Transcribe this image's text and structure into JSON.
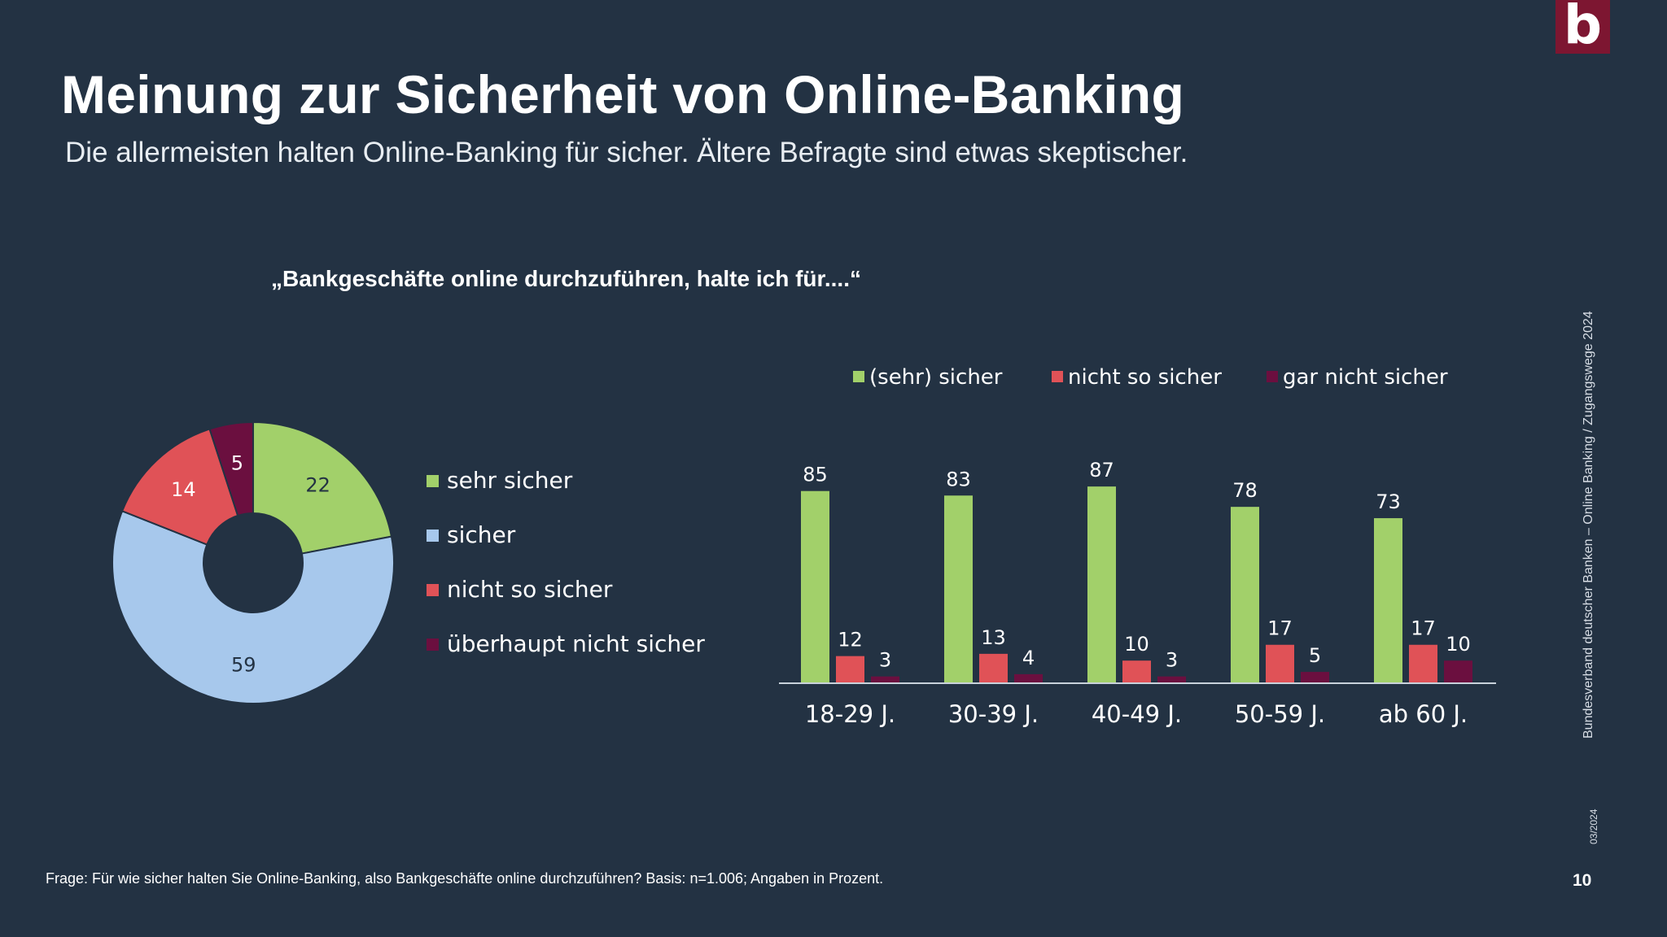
{
  "logo": "b",
  "title": "Meinung zur Sicherheit von Online-Banking",
  "subtitle": "Die allermeisten halten Online-Banking für sicher. Ältere Befragte sind etwas skeptischer.",
  "question": "„Bankgeschäfte online durchzuführen, halte ich für....“",
  "footnote": "Frage: Für wie sicher halten Sie Online-Banking, also Bankgeschäfte online durchzuführen? Basis: n=1.006; Angaben in Prozent.",
  "page_number": "10",
  "source_vertical": "Bundesverband deutscher Banken – Online Banking / Zugangswege  2024",
  "date_vertical": "03/2024",
  "chart_data": [
    {
      "type": "pie",
      "donut": true,
      "legend_position": "right",
      "categories": [
        "sehr sicher",
        "sicher",
        "nicht so sicher",
        "überhaupt nicht sicher"
      ],
      "values": [
        22,
        59,
        14,
        5
      ],
      "colors": [
        "#a2d06a",
        "#a7c8ec",
        "#e05257",
        "#6b0f3f"
      ],
      "label_colors": [
        "#233243",
        "#233243",
        "#ffffff",
        "#ffffff"
      ]
    },
    {
      "type": "bar",
      "legend_position": "top",
      "categories": [
        "18-29 J.",
        "30-39 J.",
        "40-49 J.",
        "50-59 J.",
        "ab 60 J."
      ],
      "series": [
        {
          "name": "(sehr) sicher",
          "values": [
            85,
            83,
            87,
            78,
            73
          ],
          "color": "#a2d06a"
        },
        {
          "name": "nicht so sicher",
          "values": [
            12,
            13,
            10,
            17,
            17
          ],
          "color": "#e05257"
        },
        {
          "name": "gar nicht sicher",
          "values": [
            3,
            4,
            3,
            5,
            10
          ],
          "color": "#6b0f3f"
        }
      ],
      "ylim": [
        0,
        100
      ],
      "grid": false
    }
  ]
}
